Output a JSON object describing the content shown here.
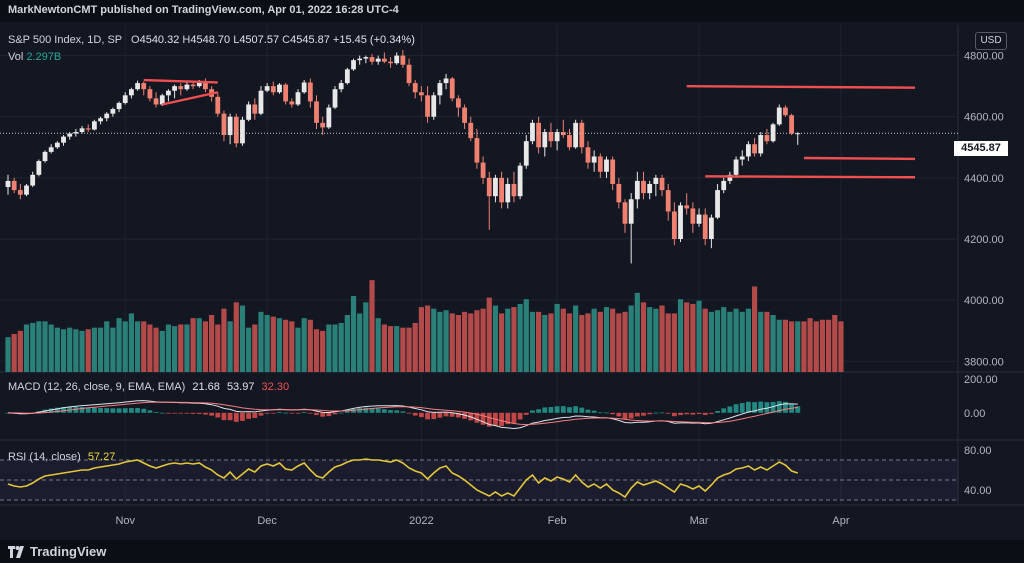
{
  "header": {
    "text": "MarkNewtonCMT published on TradingView.com, Apr 01, 2022 16:28 UTC-4"
  },
  "legend": {
    "symbol": "S&P 500 Index, 1D, SP",
    "o_label": "O",
    "o": "4540.32",
    "h_label": "H",
    "h": "4548.70",
    "l_label": "L",
    "l": "4507.57",
    "c_label": "C",
    "c": "4545.87",
    "change": "+15.45 (+0.34%)",
    "vol_label": "Vol",
    "vol": "2.297B"
  },
  "currency": "USD",
  "last_price": "4545.87",
  "macd_legend": {
    "label": "MACD (12, 26, close, 9, EMA, EMA)",
    "v1": "21.68",
    "v2": "53.97",
    "v3": "32.30"
  },
  "rsi_legend": {
    "label": "RSI (14, close)",
    "value": "57.27"
  },
  "footer": {
    "brand": "TradingView"
  },
  "colors": {
    "up": "#e8e8e8",
    "down": "#f08070",
    "vol_up": "#2a7f78",
    "vol_down": "#b24a4a",
    "resistance": "#ef4f4f",
    "rsi": "#e3c63a",
    "background": "#131722"
  },
  "chart_data": {
    "type": "candlestick",
    "price_axis": {
      "ticks": [
        "4800.00",
        "4600.00",
        "4400.00",
        "4200.00",
        "4000.00",
        "3800.00"
      ],
      "tick_values": [
        4800,
        4600,
        4400,
        4200,
        4000,
        3800
      ],
      "ylim": [
        3765,
        4900
      ]
    },
    "time_axis": {
      "labels": [
        "Nov",
        "Dec",
        "2022",
        "Feb",
        "Mar",
        "Apr"
      ],
      "label_index": [
        19,
        42,
        67,
        89,
        112,
        135
      ]
    },
    "macd_axis": {
      "ticks": [
        "200.00",
        "0.00"
      ],
      "tick_values": [
        200,
        0
      ],
      "ylim": [
        -160,
        240
      ]
    },
    "rsi_axis": {
      "ticks": [
        "80.00",
        "40.00"
      ],
      "tick_values": [
        80,
        40
      ],
      "bands": [
        70,
        50,
        30
      ],
      "ylim": [
        25,
        90
      ]
    },
    "candles": [
      {
        "o": 4370,
        "h": 4410,
        "l": 4345,
        "c": 4390
      },
      {
        "o": 4390,
        "h": 4400,
        "l": 4350,
        "c": 4360
      },
      {
        "o": 4360,
        "h": 4380,
        "l": 4330,
        "c": 4345
      },
      {
        "o": 4345,
        "h": 4380,
        "l": 4340,
        "c": 4375
      },
      {
        "o": 4375,
        "h": 4420,
        "l": 4370,
        "c": 4410
      },
      {
        "o": 4410,
        "h": 4460,
        "l": 4405,
        "c": 4455
      },
      {
        "o": 4455,
        "h": 4490,
        "l": 4450,
        "c": 4485
      },
      {
        "o": 4485,
        "h": 4510,
        "l": 4480,
        "c": 4500
      },
      {
        "o": 4500,
        "h": 4520,
        "l": 4495,
        "c": 4515
      },
      {
        "o": 4515,
        "h": 4540,
        "l": 4505,
        "c": 4535
      },
      {
        "o": 4535,
        "h": 4550,
        "l": 4525,
        "c": 4545
      },
      {
        "o": 4545,
        "h": 4560,
        "l": 4535,
        "c": 4550
      },
      {
        "o": 4550,
        "h": 4570,
        "l": 4545,
        "c": 4562
      },
      {
        "o": 4562,
        "h": 4575,
        "l": 4550,
        "c": 4558
      },
      {
        "o": 4558,
        "h": 4590,
        "l": 4555,
        "c": 4585
      },
      {
        "o": 4585,
        "h": 4600,
        "l": 4575,
        "c": 4595
      },
      {
        "o": 4595,
        "h": 4615,
        "l": 4585,
        "c": 4610
      },
      {
        "o": 4610,
        "h": 4630,
        "l": 4600,
        "c": 4625
      },
      {
        "o": 4625,
        "h": 4650,
        "l": 4615,
        "c": 4645
      },
      {
        "o": 4645,
        "h": 4680,
        "l": 4640,
        "c": 4670
      },
      {
        "o": 4670,
        "h": 4695,
        "l": 4660,
        "c": 4690
      },
      {
        "o": 4690,
        "h": 4718,
        "l": 4685,
        "c": 4710
      },
      {
        "o": 4710,
        "h": 4715,
        "l": 4670,
        "c": 4690
      },
      {
        "o": 4690,
        "h": 4700,
        "l": 4650,
        "c": 4660
      },
      {
        "o": 4660,
        "h": 4680,
        "l": 4630,
        "c": 4640
      },
      {
        "o": 4640,
        "h": 4675,
        "l": 4635,
        "c": 4670
      },
      {
        "o": 4670,
        "h": 4690,
        "l": 4650,
        "c": 4685
      },
      {
        "o": 4685,
        "h": 4705,
        "l": 4660,
        "c": 4700
      },
      {
        "o": 4700,
        "h": 4710,
        "l": 4670,
        "c": 4690
      },
      {
        "o": 4690,
        "h": 4712,
        "l": 4685,
        "c": 4705
      },
      {
        "o": 4705,
        "h": 4712,
        "l": 4690,
        "c": 4700
      },
      {
        "o": 4700,
        "h": 4720,
        "l": 4695,
        "c": 4712
      },
      {
        "o": 4712,
        "h": 4725,
        "l": 4680,
        "c": 4690
      },
      {
        "o": 4690,
        "h": 4700,
        "l": 4650,
        "c": 4665
      },
      {
        "o": 4665,
        "h": 4680,
        "l": 4600,
        "c": 4610
      },
      {
        "o": 4610,
        "h": 4620,
        "l": 4520,
        "c": 4540
      },
      {
        "o": 4540,
        "h": 4610,
        "l": 4510,
        "c": 4600
      },
      {
        "o": 4600,
        "h": 4610,
        "l": 4500,
        "c": 4513
      },
      {
        "o": 4513,
        "h": 4600,
        "l": 4505,
        "c": 4590
      },
      {
        "o": 4590,
        "h": 4650,
        "l": 4585,
        "c": 4640
      },
      {
        "o": 4640,
        "h": 4660,
        "l": 4590,
        "c": 4610
      },
      {
        "o": 4610,
        "h": 4700,
        "l": 4605,
        "c": 4685
      },
      {
        "o": 4685,
        "h": 4710,
        "l": 4680,
        "c": 4700
      },
      {
        "o": 4700,
        "h": 4715,
        "l": 4670,
        "c": 4680
      },
      {
        "o": 4680,
        "h": 4710,
        "l": 4675,
        "c": 4705
      },
      {
        "o": 4705,
        "h": 4710,
        "l": 4640,
        "c": 4650
      },
      {
        "o": 4650,
        "h": 4660,
        "l": 4630,
        "c": 4640
      },
      {
        "o": 4640,
        "h": 4690,
        "l": 4635,
        "c": 4680
      },
      {
        "o": 4680,
        "h": 4720,
        "l": 4675,
        "c": 4712
      },
      {
        "o": 4712,
        "h": 4725,
        "l": 4630,
        "c": 4650
      },
      {
        "o": 4650,
        "h": 4670,
        "l": 4560,
        "c": 4580
      },
      {
        "o": 4580,
        "h": 4600,
        "l": 4540,
        "c": 4565
      },
      {
        "o": 4565,
        "h": 4640,
        "l": 4560,
        "c": 4630
      },
      {
        "o": 4630,
        "h": 4700,
        "l": 4625,
        "c": 4690
      },
      {
        "o": 4690,
        "h": 4720,
        "l": 4680,
        "c": 4710
      },
      {
        "o": 4710,
        "h": 4760,
        "l": 4705,
        "c": 4755
      },
      {
        "o": 4755,
        "h": 4790,
        "l": 4750,
        "c": 4785
      },
      {
        "o": 4785,
        "h": 4800,
        "l": 4770,
        "c": 4790
      },
      {
        "o": 4790,
        "h": 4800,
        "l": 4775,
        "c": 4795
      },
      {
        "o": 4795,
        "h": 4805,
        "l": 4770,
        "c": 4780
      },
      {
        "o": 4780,
        "h": 4800,
        "l": 4770,
        "c": 4790
      },
      {
        "o": 4790,
        "h": 4810,
        "l": 4775,
        "c": 4780
      },
      {
        "o": 4780,
        "h": 4795,
        "l": 4760,
        "c": 4775
      },
      {
        "o": 4775,
        "h": 4810,
        "l": 4770,
        "c": 4800
      },
      {
        "o": 4800,
        "h": 4818,
        "l": 4760,
        "c": 4770
      },
      {
        "o": 4770,
        "h": 4790,
        "l": 4700,
        "c": 4710
      },
      {
        "o": 4710,
        "h": 4720,
        "l": 4660,
        "c": 4680
      },
      {
        "o": 4680,
        "h": 4700,
        "l": 4650,
        "c": 4670
      },
      {
        "o": 4670,
        "h": 4700,
        "l": 4580,
        "c": 4600
      },
      {
        "o": 4600,
        "h": 4680,
        "l": 4590,
        "c": 4670
      },
      {
        "o": 4670,
        "h": 4720,
        "l": 4640,
        "c": 4710
      },
      {
        "o": 4710,
        "h": 4740,
        "l": 4690,
        "c": 4725
      },
      {
        "o": 4725,
        "h": 4730,
        "l": 4650,
        "c": 4660
      },
      {
        "o": 4660,
        "h": 4670,
        "l": 4600,
        "c": 4630
      },
      {
        "o": 4630,
        "h": 4640,
        "l": 4560,
        "c": 4580
      },
      {
        "o": 4580,
        "h": 4600,
        "l": 4520,
        "c": 4530
      },
      {
        "o": 4530,
        "h": 4560,
        "l": 4430,
        "c": 4450
      },
      {
        "o": 4450,
        "h": 4470,
        "l": 4380,
        "c": 4400
      },
      {
        "o": 4400,
        "h": 4420,
        "l": 4230,
        "c": 4340
      },
      {
        "o": 4340,
        "h": 4410,
        "l": 4320,
        "c": 4400
      },
      {
        "o": 4400,
        "h": 4420,
        "l": 4300,
        "c": 4320
      },
      {
        "o": 4320,
        "h": 4400,
        "l": 4300,
        "c": 4380
      },
      {
        "o": 4380,
        "h": 4420,
        "l": 4320,
        "c": 4340
      },
      {
        "o": 4340,
        "h": 4450,
        "l": 4330,
        "c": 4440
      },
      {
        "o": 4440,
        "h": 4540,
        "l": 4430,
        "c": 4520
      },
      {
        "o": 4520,
        "h": 4590,
        "l": 4510,
        "c": 4580
      },
      {
        "o": 4580,
        "h": 4600,
        "l": 4480,
        "c": 4500
      },
      {
        "o": 4500,
        "h": 4560,
        "l": 4470,
        "c": 4550
      },
      {
        "o": 4550,
        "h": 4580,
        "l": 4500,
        "c": 4520
      },
      {
        "o": 4520,
        "h": 4560,
        "l": 4490,
        "c": 4550
      },
      {
        "o": 4550,
        "h": 4590,
        "l": 4530,
        "c": 4540
      },
      {
        "o": 4540,
        "h": 4560,
        "l": 4490,
        "c": 4500
      },
      {
        "o": 4500,
        "h": 4590,
        "l": 4495,
        "c": 4580
      },
      {
        "o": 4580,
        "h": 4590,
        "l": 4480,
        "c": 4500
      },
      {
        "o": 4500,
        "h": 4520,
        "l": 4430,
        "c": 4450
      },
      {
        "o": 4450,
        "h": 4490,
        "l": 4420,
        "c": 4470
      },
      {
        "o": 4470,
        "h": 4480,
        "l": 4400,
        "c": 4420
      },
      {
        "o": 4420,
        "h": 4470,
        "l": 4400,
        "c": 4460
      },
      {
        "o": 4460,
        "h": 4470,
        "l": 4360,
        "c": 4380
      },
      {
        "o": 4380,
        "h": 4400,
        "l": 4300,
        "c": 4320
      },
      {
        "o": 4320,
        "h": 4330,
        "l": 4220,
        "c": 4250
      },
      {
        "o": 4250,
        "h": 4350,
        "l": 4120,
        "c": 4330
      },
      {
        "o": 4330,
        "h": 4420,
        "l": 4300,
        "c": 4390
      },
      {
        "o": 4390,
        "h": 4420,
        "l": 4330,
        "c": 4350
      },
      {
        "o": 4350,
        "h": 4390,
        "l": 4330,
        "c": 4380
      },
      {
        "o": 4380,
        "h": 4410,
        "l": 4340,
        "c": 4400
      },
      {
        "o": 4400,
        "h": 4410,
        "l": 4340,
        "c": 4360
      },
      {
        "o": 4360,
        "h": 4380,
        "l": 4260,
        "c": 4290
      },
      {
        "o": 4290,
        "h": 4320,
        "l": 4180,
        "c": 4200
      },
      {
        "o": 4200,
        "h": 4320,
        "l": 4190,
        "c": 4310
      },
      {
        "o": 4310,
        "h": 4350,
        "l": 4280,
        "c": 4300
      },
      {
        "o": 4300,
        "h": 4320,
        "l": 4220,
        "c": 4250
      },
      {
        "o": 4250,
        "h": 4300,
        "l": 4240,
        "c": 4280
      },
      {
        "o": 4280,
        "h": 4300,
        "l": 4180,
        "c": 4200
      },
      {
        "o": 4200,
        "h": 4280,
        "l": 4170,
        "c": 4270
      },
      {
        "o": 4270,
        "h": 4380,
        "l": 4265,
        "c": 4360
      },
      {
        "o": 4360,
        "h": 4400,
        "l": 4350,
        "c": 4390
      },
      {
        "o": 4390,
        "h": 4420,
        "l": 4380,
        "c": 4410
      },
      {
        "o": 4410,
        "h": 4470,
        "l": 4400,
        "c": 4460
      },
      {
        "o": 4460,
        "h": 4490,
        "l": 4440,
        "c": 4470
      },
      {
        "o": 4470,
        "h": 4520,
        "l": 4455,
        "c": 4510
      },
      {
        "o": 4510,
        "h": 4530,
        "l": 4470,
        "c": 4480
      },
      {
        "o": 4480,
        "h": 4550,
        "l": 4470,
        "c": 4540
      },
      {
        "o": 4540,
        "h": 4560,
        "l": 4510,
        "c": 4520
      },
      {
        "o": 4520,
        "h": 4580,
        "l": 4515,
        "c": 4575
      },
      {
        "o": 4575,
        "h": 4640,
        "l": 4570,
        "c": 4630
      },
      {
        "o": 4630,
        "h": 4637,
        "l": 4600,
        "c": 4605
      },
      {
        "o": 4605,
        "h": 4610,
        "l": 4540,
        "c": 4545
      },
      {
        "o": 4545,
        "h": 4549,
        "l": 4508,
        "c": 4546
      }
    ],
    "volume": [
      22,
      24,
      26,
      30,
      31,
      32,
      32,
      30,
      28,
      27,
      28,
      27,
      26,
      27,
      28,
      28,
      32,
      28,
      34,
      32,
      37,
      32,
      32,
      30,
      28,
      26,
      30,
      29,
      30,
      30,
      34,
      34,
      32,
      36,
      30,
      40,
      32,
      44,
      42,
      28,
      30,
      38,
      36,
      35,
      34,
      33,
      32,
      28,
      34,
      33,
      27,
      26,
      30,
      30,
      31,
      36,
      48,
      37,
      44,
      58,
      34,
      30,
      29,
      29,
      28,
      28,
      31,
      41,
      42,
      40,
      38,
      39,
      37,
      36,
      38,
      37,
      39,
      40,
      47,
      42,
      37,
      40,
      41,
      43,
      46,
      38,
      38,
      36,
      37,
      43,
      40,
      37,
      42,
      36,
      37,
      40,
      38,
      41,
      40,
      37,
      38,
      42,
      50,
      44,
      41,
      40,
      42,
      37,
      37,
      46,
      44,
      43,
      45,
      40,
      38,
      39,
      41,
      38,
      40,
      38,
      40,
      54,
      38,
      38,
      36,
      33,
      33,
      32,
      32,
      32,
      34,
      32,
      33,
      33,
      36,
      32
    ],
    "rsi": [
      46,
      44,
      43,
      44,
      47,
      51,
      54,
      55,
      56,
      57,
      58,
      59,
      60,
      60,
      62,
      63,
      64,
      65,
      66,
      68,
      69,
      70,
      67,
      64,
      62,
      64,
      66,
      67,
      66,
      67,
      66,
      67,
      63,
      60,
      55,
      52,
      58,
      51,
      56,
      61,
      58,
      64,
      66,
      64,
      67,
      61,
      60,
      64,
      67,
      60,
      54,
      52,
      58,
      63,
      65,
      68,
      70,
      70,
      71,
      70,
      70,
      69,
      68,
      70,
      67,
      62,
      59,
      57,
      51,
      57,
      62,
      64,
      57,
      54,
      50,
      45,
      40,
      37,
      34,
      38,
      34,
      37,
      34,
      42,
      50,
      55,
      47,
      52,
      49,
      53,
      51,
      48,
      55,
      48,
      43,
      46,
      42,
      46,
      40,
      37,
      33,
      42,
      48,
      45,
      47,
      49,
      46,
      42,
      38,
      46,
      44,
      41,
      44,
      39,
      45,
      52,
      55,
      57,
      61,
      62,
      64,
      60,
      63,
      60,
      64,
      68,
      65,
      59,
      57
    ]
  }
}
